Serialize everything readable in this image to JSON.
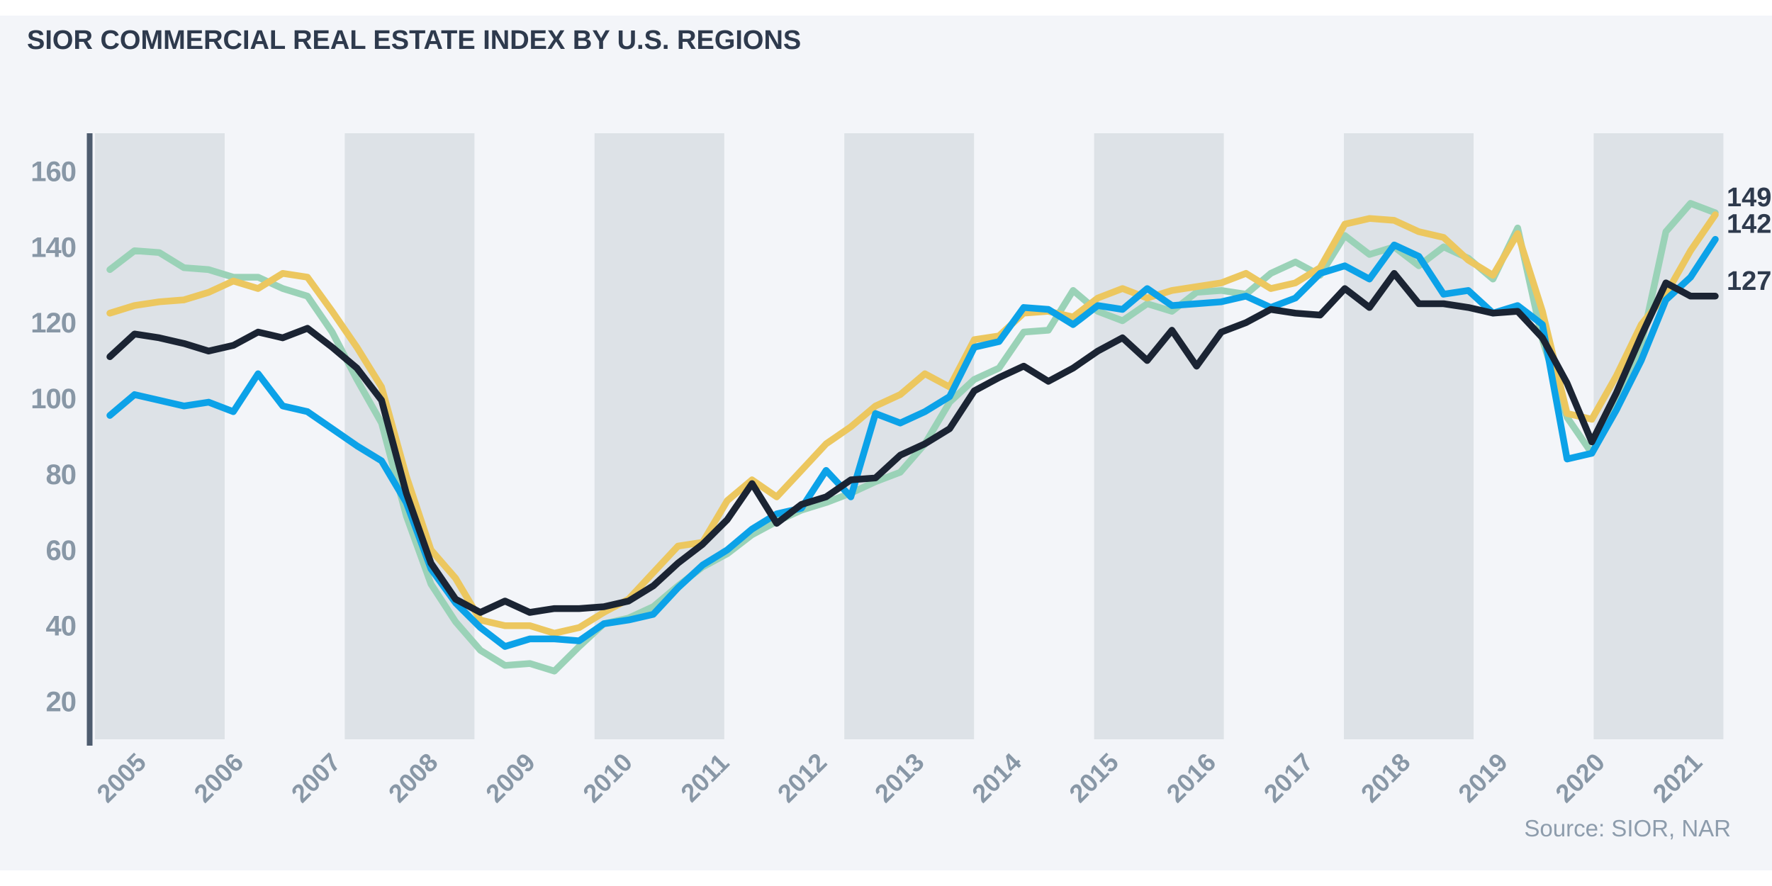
{
  "title": "SIOR COMMERCIAL REAL ESTATE INDEX BY U.S. REGIONS",
  "source_note": "Source: SIOR, NAR",
  "chart_data": {
    "type": "line",
    "title": "SIOR COMMERCIAL REAL ESTATE INDEX BY U.S. REGIONS",
    "frequency": "quarterly",
    "x_start": "2005 Q1",
    "x_end": "2021 Q2",
    "xlabel": "",
    "ylabel": "",
    "x_year_labels": [
      "2005",
      "2006",
      "2007",
      "2008",
      "2009",
      "2010",
      "2011",
      "2012",
      "2013",
      "2014",
      "2015",
      "2016",
      "2017",
      "2018",
      "2019",
      "2020",
      "2021"
    ],
    "y_ticks": [
      160,
      140,
      120,
      100,
      80,
      60,
      40,
      20
    ],
    "ylim": [
      10,
      170
    ],
    "grid": "off",
    "legend": "none",
    "background_bands": "alternating vertical gray bands",
    "end_labels": [
      {
        "text": "149",
        "series": "teal"
      },
      {
        "text": "142",
        "series": "blue"
      },
      {
        "text": "127",
        "series": "navy"
      }
    ],
    "series": [
      {
        "name": "teal",
        "color": "#9ad2b7",
        "values": [
          134,
          139,
          138.5,
          134.5,
          134,
          132,
          132,
          129,
          127,
          117.5,
          105,
          93.5,
          69,
          51,
          41,
          33.5,
          29.5,
          30,
          28,
          34.5,
          40.5,
          42,
          45,
          50.5,
          55.5,
          59,
          64,
          67.5,
          70.5,
          72.5,
          75,
          78,
          80.5,
          88,
          99,
          105,
          108,
          117.5,
          118,
          128.5,
          123,
          120.5,
          125,
          123,
          128,
          128.5,
          127.5,
          133,
          136,
          132.5,
          143,
          138,
          140,
          135,
          140,
          137,
          131.5,
          145,
          115.5,
          95,
          85.5,
          98.5,
          114,
          144,
          151.5,
          149
        ]
      },
      {
        "name": "yellow",
        "color": "#ecc75f",
        "values": [
          122.5,
          124.5,
          125.5,
          126,
          128,
          131,
          129,
          133,
          132,
          123,
          113.5,
          103,
          79.5,
          60,
          52.5,
          41.5,
          40,
          40,
          38,
          39.5,
          43.5,
          47,
          54,
          61,
          62,
          73,
          78.5,
          74,
          81,
          88,
          92.5,
          98,
          101,
          106.5,
          103,
          115.5,
          116.5,
          122.5,
          123,
          121.5,
          126.5,
          129,
          126.5,
          128.5,
          129.5,
          130.5,
          133,
          129,
          130.5,
          134.5,
          146,
          147.5,
          147,
          144,
          142.5,
          136.5,
          132.5,
          143.5,
          123,
          96,
          94.5,
          106,
          119.5,
          127.5,
          139,
          148.5
        ]
      },
      {
        "name": "blue",
        "color": "#0ca2e8",
        "values": [
          95.5,
          101,
          99.5,
          98,
          99,
          96.5,
          106.5,
          98,
          96.5,
          92,
          87.5,
          83.5,
          72.5,
          55,
          46,
          39.5,
          34.5,
          36.5,
          36.5,
          36,
          40.5,
          41.5,
          43,
          50,
          56,
          60,
          65.5,
          69.5,
          71,
          81,
          74,
          96,
          93.5,
          96.5,
          100.5,
          113.5,
          115,
          124,
          123.5,
          119.5,
          124.5,
          123.5,
          129,
          124.5,
          125,
          125.5,
          127,
          124,
          126.5,
          133,
          135,
          131.5,
          140.5,
          137.5,
          127.5,
          128.5,
          122.5,
          124.5,
          119.5,
          84,
          85.5,
          97,
          110,
          126,
          132,
          142
        ]
      },
      {
        "name": "navy",
        "color": "#1b2433",
        "values": [
          111,
          117,
          116,
          114.5,
          112.5,
          114,
          117.5,
          116,
          118.5,
          113.5,
          108,
          99.5,
          75,
          56.5,
          47,
          43.5,
          46.5,
          43.5,
          44.5,
          44.5,
          45,
          46.5,
          50.5,
          56.5,
          61.5,
          68,
          77.5,
          67,
          72,
          74,
          78.5,
          79,
          85,
          88,
          92,
          102,
          105.5,
          108.5,
          104.5,
          108,
          112.5,
          116,
          110,
          118,
          108.5,
          117.5,
          120,
          123.5,
          122.5,
          122,
          129,
          124,
          133,
          125,
          125,
          124,
          122.5,
          123,
          116,
          104,
          88.5,
          101.5,
          116.5,
          130.5,
          127,
          127
        ]
      }
    ]
  },
  "colors": {
    "page": "#ffffff",
    "panel": "#f3f5f9",
    "band": "#dde2e7",
    "axis_bar": "#4e5c6f",
    "tick_text": "#8897a6",
    "title_text": "#2e3a4d",
    "end_label_text": "#2e3a4d",
    "source_text": "#8d9cac"
  }
}
